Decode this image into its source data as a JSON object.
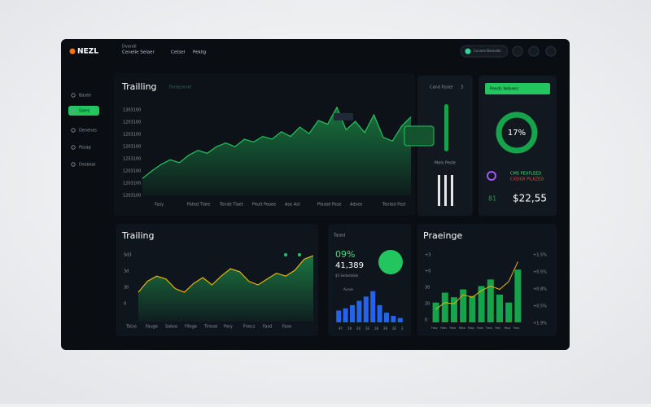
{
  "header": {
    "logo": "NEZL",
    "nav_caption": "Dvandl",
    "nav": [
      "Cenelie Seiaer",
      "Cetsel",
      "Peklig"
    ],
    "status": "Conelle Bstmelle"
  },
  "sidebar": {
    "items": [
      "Basen",
      "Sales",
      "Denenes",
      "Pesap",
      "Desbeal"
    ],
    "active": 1
  },
  "main_chart": {
    "title": "Trailling",
    "subtitle": "Ferdesenel",
    "y_labels": [
      "1303100",
      "1203100",
      "1203100",
      "1203100",
      "1253100",
      "1203100",
      "1203100",
      "1203100"
    ],
    "x_labels": [
      "Fasy",
      "Pated Tlate",
      "Tende Tlaet",
      "Peult Peaee",
      "Ase Ast",
      "Plased Pese",
      "Adsee",
      "Tented Fest"
    ],
    "values": [
      18,
      26,
      33,
      38,
      35,
      43,
      48,
      45,
      52,
      56,
      52,
      60,
      57,
      63,
      60,
      68,
      63,
      73,
      66,
      80,
      76,
      94,
      70,
      79,
      67,
      86,
      62,
      58,
      74,
      84
    ],
    "ylim": [
      0,
      100
    ],
    "color": "#22c55e"
  },
  "side_card": {
    "title": "Cand Fasier",
    "count": 3,
    "label": "Mels Pesle"
  },
  "stats_card": {
    "button": "Peeds Nebees",
    "donut_label": "17%",
    "lines": [
      "CMS PEUFLEED",
      "CXSIOX PILKZED"
    ],
    "small": "81",
    "amount": "$22,55"
  },
  "trend_chart": {
    "title": "Trailing",
    "y_labels": [
      "Sd3",
      "3d",
      "30",
      "0"
    ],
    "x_labels": [
      "Tatse",
      "Fauge",
      "Sabse",
      "Fifage",
      "Tiresel",
      "Pary",
      "Fnecs",
      "Fasd",
      "Fase"
    ],
    "values": [
      40,
      55,
      62,
      58,
      45,
      40,
      52,
      60,
      50,
      62,
      72,
      68,
      55,
      50,
      58,
      66,
      62,
      70,
      85,
      90
    ],
    "ylim": [
      0,
      100
    ],
    "color": "#22c55e"
  },
  "summary_card": {
    "title": "Tased",
    "percent": "09%",
    "total": "41,389",
    "note": "$5 Sedestdiok",
    "legend": "Accee",
    "x_labels": [
      "4F",
      "28",
      "26",
      "2E",
      "28",
      "28",
      "2E",
      "2"
    ],
    "values": [
      22,
      26,
      32,
      40,
      48,
      58,
      32,
      18,
      12,
      8
    ],
    "ylim": [
      0,
      100
    ],
    "color": "#2563eb"
  },
  "growth_chart": {
    "title": "Praeinge",
    "y_labels": [
      "+3",
      "+0",
      "30",
      "20",
      "0"
    ],
    "y2_labels": [
      "+1.5%",
      "+0.5%",
      "+0.8%",
      "+0.5%",
      "+1.9%"
    ],
    "x_labels": [
      "Fasy",
      "Fabs",
      "Fabs",
      "Faba",
      "Fasp",
      "Faos",
      "Foss",
      "Fasl",
      "Faso",
      "Fass"
    ],
    "values": [
      30,
      45,
      38,
      50,
      40,
      55,
      65,
      42,
      30,
      80
    ],
    "line": [
      20,
      30,
      28,
      42,
      38,
      48,
      55,
      50,
      62,
      92
    ],
    "ylim": [
      0,
      100
    ],
    "color": "#16a34a"
  }
}
